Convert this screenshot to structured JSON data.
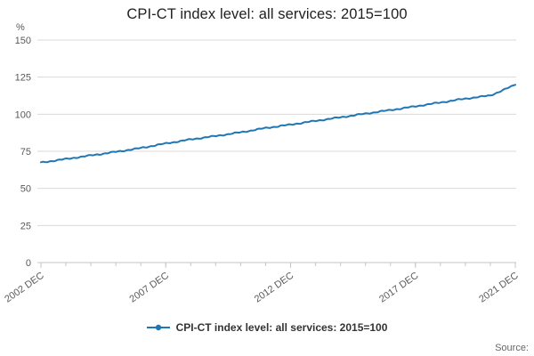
{
  "page": {
    "source_label": "Source:"
  },
  "chart_data": {
    "type": "line",
    "title": "CPI-CT index level: all services: 2015=100",
    "ylabel": "%",
    "xlabel": "",
    "ylim": [
      0,
      150
    ],
    "yticks": [
      0,
      25,
      50,
      75,
      100,
      125,
      150
    ],
    "x_range_dec_years": [
      2002,
      2021
    ],
    "x_tick_labels": [
      {
        "year": 2002,
        "label": "2002 DEC"
      },
      {
        "year": 2007,
        "label": "2007 DEC"
      },
      {
        "year": 2012,
        "label": "2012 DEC"
      },
      {
        "year": 2017,
        "label": "2017 DEC"
      },
      {
        "year": 2021,
        "label": "2021 DEC"
      }
    ],
    "grid": "horizontal",
    "legend_position": "bottom",
    "colors": {
      "line": "#1f77b4",
      "gridline": "#d9d9d9",
      "axis": "#c6c6c6",
      "tick_label": "#595959"
    },
    "series": [
      {
        "name": "CPI-CT index level: all services: 2015=100",
        "color": "#1f77b4",
        "x_dec_years": [
          2002,
          2003,
          2004,
          2005,
          2006,
          2007,
          2008,
          2009,
          2010,
          2011,
          2012,
          2013,
          2014,
          2015,
          2016,
          2017,
          2018,
          2019,
          2020,
          2021
        ],
        "values": [
          67.4,
          69.8,
          72.2,
          74.6,
          77.2,
          80.3,
          83.0,
          85.3,
          87.8,
          90.7,
          93.0,
          95.5,
          97.9,
          100.4,
          102.8,
          105.3,
          107.9,
          110.5,
          112.6,
          119.8
        ]
      }
    ]
  }
}
